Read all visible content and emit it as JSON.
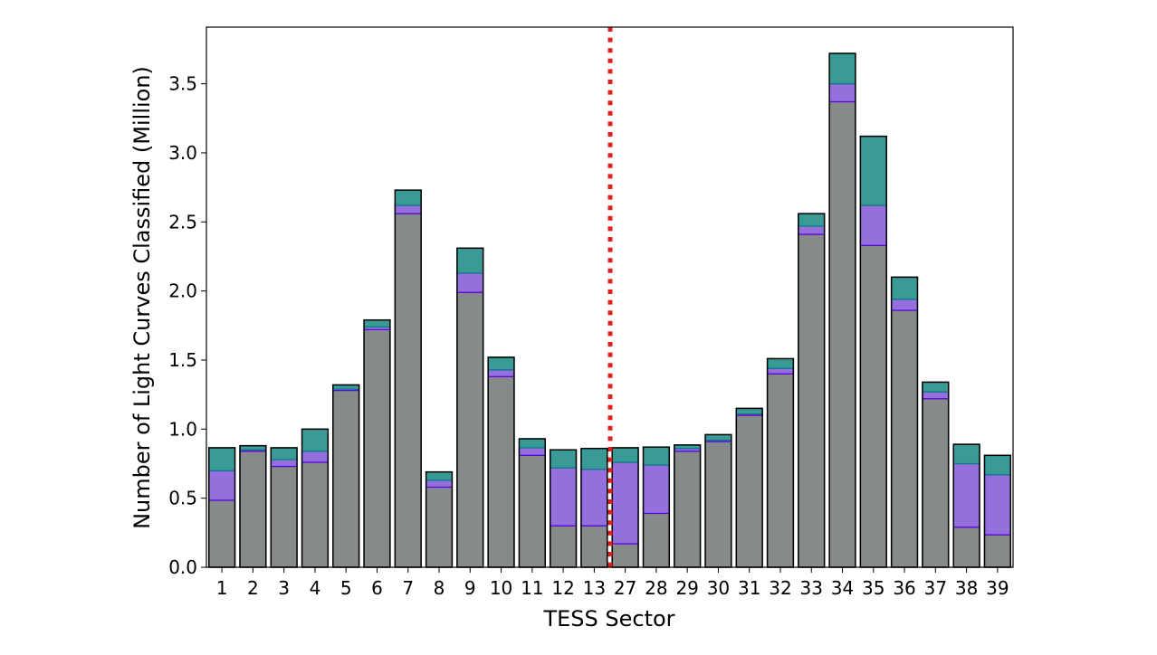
{
  "chart_data": {
    "type": "bar",
    "stacked": true,
    "title": "",
    "xlabel": "TESS Sector",
    "ylabel": "Number of Light Curves Classified (Million)",
    "ylim": [
      0,
      3.91
    ],
    "yticks": [
      "0.0",
      "0.5",
      "1.0",
      "1.5",
      "2.0",
      "2.5",
      "3.0",
      "3.5"
    ],
    "grid": false,
    "categories": [
      "1",
      "2",
      "3",
      "4",
      "5",
      "6",
      "7",
      "8",
      "9",
      "10",
      "11",
      "12",
      "13",
      "27",
      "28",
      "29",
      "30",
      "31",
      "32",
      "33",
      "34",
      "35",
      "36",
      "37",
      "38",
      "39"
    ],
    "series": [
      {
        "color": "#878a8a",
        "values": [
          0.485,
          0.84,
          0.73,
          0.76,
          1.28,
          1.72,
          2.56,
          0.58,
          1.99,
          1.38,
          0.81,
          0.3,
          0.3,
          0.17,
          0.39,
          0.84,
          0.91,
          1.1,
          1.4,
          2.41,
          3.37,
          2.33,
          1.86,
          1.22,
          0.29,
          0.235
        ]
      },
      {
        "color": "#9370db",
        "values": [
          0.215,
          0.01,
          0.05,
          0.08,
          0.01,
          0.02,
          0.06,
          0.05,
          0.14,
          0.05,
          0.055,
          0.42,
          0.41,
          0.59,
          0.35,
          0.02,
          0.01,
          0.01,
          0.04,
          0.06,
          0.13,
          0.29,
          0.08,
          0.05,
          0.46,
          0.435
        ]
      },
      {
        "color": "#3a9a96",
        "values": [
          0.165,
          0.03,
          0.085,
          0.16,
          0.03,
          0.05,
          0.11,
          0.06,
          0.18,
          0.09,
          0.065,
          0.13,
          0.15,
          0.105,
          0.13,
          0.025,
          0.04,
          0.04,
          0.07,
          0.09,
          0.22,
          0.5,
          0.16,
          0.07,
          0.14,
          0.14
        ]
      }
    ],
    "annotations": [
      {
        "type": "vertical-dashed-line",
        "between": [
          "13",
          "27"
        ],
        "color": "#e0201b"
      }
    ]
  }
}
